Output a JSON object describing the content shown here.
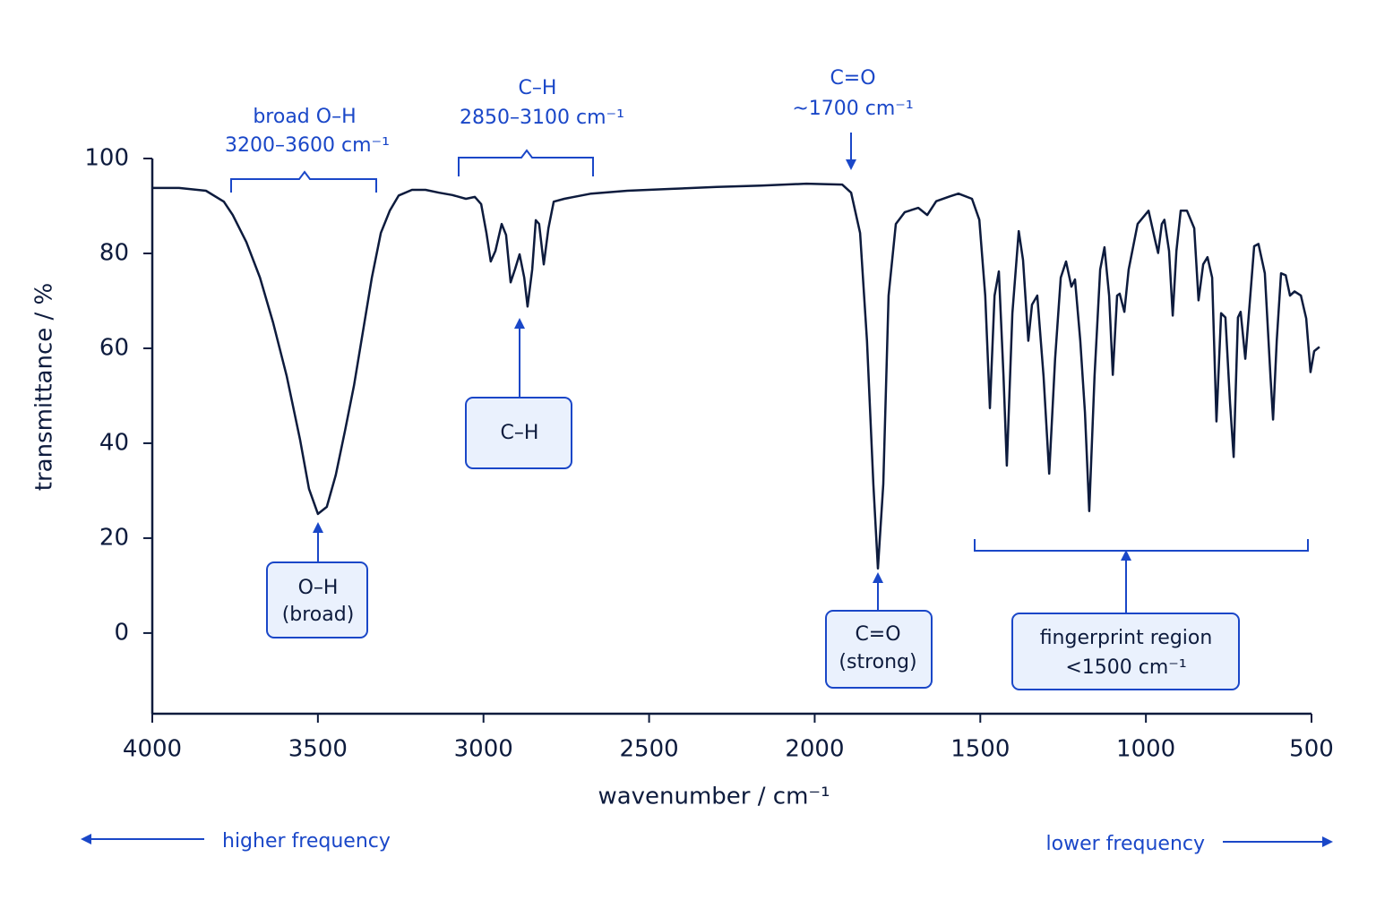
{
  "chart_data": {
    "type": "line",
    "x_label": "wavenumber / cm⁻¹",
    "y_label": "transmittance / %",
    "xlim": [
      4000,
      500
    ],
    "ylim": [
      -17,
      100
    ],
    "xticks": [
      4000,
      3500,
      3000,
      2500,
      2000,
      1500,
      1000,
      500
    ],
    "yticks": [
      0,
      20,
      40,
      60,
      80,
      100
    ],
    "x": [
      4000,
      3919,
      3838,
      3784,
      3757,
      3716,
      3675,
      3635,
      3594,
      3554,
      3527,
      3500,
      3473,
      3446,
      3418,
      3391,
      3364,
      3337,
      3310,
      3283,
      3256,
      3216,
      3175,
      3134,
      3094,
      3053,
      3026,
      3007,
      2991,
      2978,
      2964,
      2945,
      2932,
      2918,
      2905,
      2891,
      2877,
      2867,
      2853,
      2842,
      2832,
      2818,
      2804,
      2788,
      2756,
      2675,
      2566,
      2431,
      2296,
      2161,
      2025,
      1917,
      1890,
      1863,
      1842,
      1823,
      1809,
      1793,
      1777,
      1755,
      1728,
      1687,
      1660,
      1633,
      1593,
      1566,
      1525,
      1503,
      1485,
      1471,
      1457,
      1444,
      1430,
      1420,
      1403,
      1384,
      1371,
      1355,
      1344,
      1328,
      1309,
      1292,
      1274,
      1257,
      1241,
      1225,
      1214,
      1198,
      1184,
      1171,
      1155,
      1138,
      1125,
      1111,
      1100,
      1087,
      1079,
      1065,
      1052,
      1025,
      992,
      971,
      963,
      952,
      944,
      930,
      919,
      908,
      895,
      876,
      854,
      841,
      827,
      814,
      800,
      787,
      773,
      760,
      746,
      735,
      722,
      714,
      700,
      687,
      673,
      660,
      641,
      624,
      616,
      605,
      592,
      578,
      565,
      551,
      532,
      516,
      503,
      492,
      476
    ],
    "series": [
      {
        "color": "#0d1b3d",
        "values": [
          93.8,
          93.8,
          93.2,
          90.9,
          88.1,
          82.4,
          74.9,
          65.4,
          54.1,
          40.8,
          30.4,
          25.1,
          26.6,
          33.3,
          42.7,
          52.2,
          63.5,
          74.9,
          84.3,
          89.0,
          92.2,
          93.4,
          93.4,
          92.8,
          92.3,
          91.5,
          91.9,
          90.4,
          84.3,
          78.3,
          80.5,
          86.2,
          83.9,
          73.9,
          76.6,
          79.8,
          74.9,
          68.8,
          76.6,
          87.0,
          86.2,
          77.7,
          85.3,
          90.9,
          91.5,
          92.6,
          93.2,
          93.6,
          94.0,
          94.3,
          94.7,
          94.5,
          92.8,
          84.3,
          61.6,
          31.4,
          13.6,
          31.4,
          71.1,
          86.2,
          88.7,
          89.6,
          88.1,
          91.0,
          92.0,
          92.6,
          91.5,
          87.1,
          71.1,
          47.4,
          71.1,
          76.2,
          54.1,
          35.3,
          67.4,
          84.7,
          78.6,
          61.6,
          69.2,
          71.1,
          54.1,
          33.6,
          57.8,
          74.9,
          78.3,
          73.0,
          74.5,
          61.6,
          46.5,
          25.7,
          54.1,
          76.6,
          81.3,
          71.1,
          54.4,
          71.1,
          71.5,
          67.7,
          76.6,
          86.2,
          89.0,
          82.4,
          80.1,
          86.2,
          87.1,
          80.5,
          66.9,
          80.5,
          89.0,
          89.0,
          85.3,
          70.1,
          77.7,
          79.2,
          74.9,
          44.6,
          67.4,
          66.5,
          48.4,
          37.1,
          66.5,
          67.7,
          57.8,
          69.2,
          81.5,
          82.0,
          75.8,
          54.1,
          45.0,
          61.6,
          75.8,
          75.4,
          71.1,
          72.0,
          71.1,
          66.3,
          55.0,
          59.4,
          60.3
        ]
      }
    ],
    "annotations": [
      {
        "lines": [
          "broad O–H",
          "3200–3600 cm⁻¹"
        ]
      },
      {
        "lines": [
          "C–H",
          "2850–3100 cm⁻¹"
        ]
      },
      {
        "lines": [
          "C=O",
          "~1700 cm⁻¹"
        ]
      },
      {
        "lines": [
          "O–H",
          "(broad)"
        ]
      },
      {
        "lines": [
          "C–H"
        ]
      },
      {
        "lines": [
          "C=O",
          "(strong)"
        ]
      },
      {
        "lines": [
          "fingerprint region",
          "<1500 cm⁻¹"
        ]
      }
    ],
    "direction_labels": [
      "higher frequency",
      "lower frequency"
    ]
  }
}
